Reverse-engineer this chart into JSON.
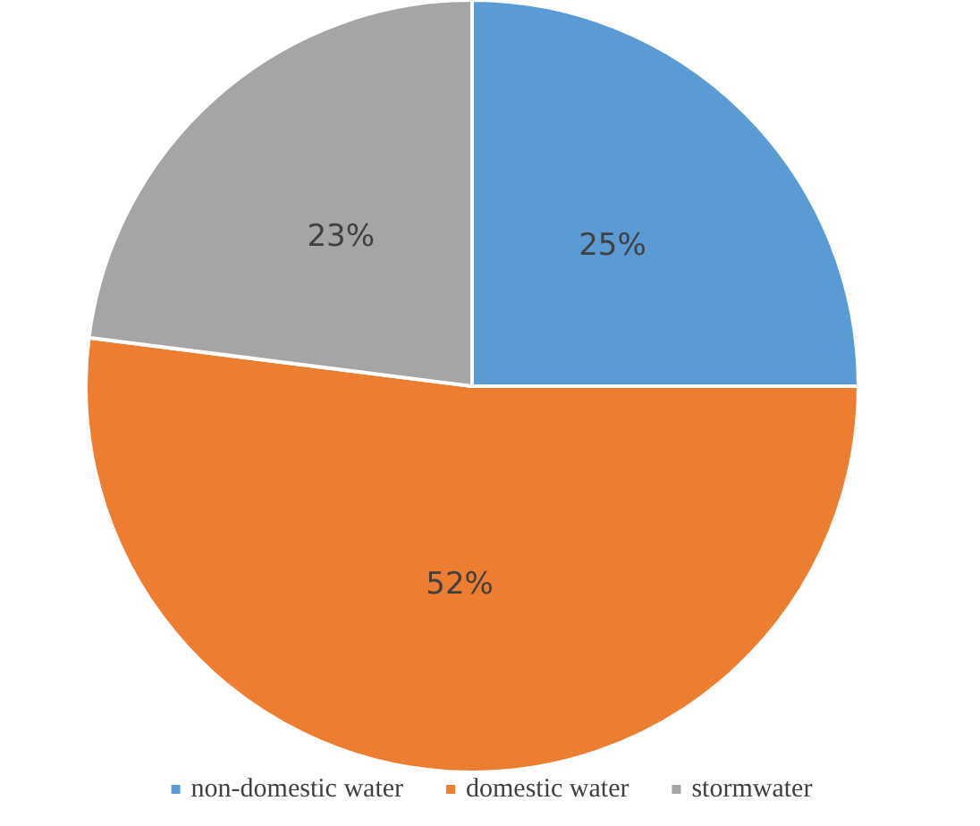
{
  "chart_data": {
    "type": "pie",
    "categories": [
      "non-domestic water",
      "domestic water",
      "stormwater"
    ],
    "values": [
      25,
      52,
      23
    ],
    "colors": [
      "#5b9bd5",
      "#ed7d31",
      "#a5a5a5"
    ],
    "value_labels": [
      "25%",
      "52%",
      "23%"
    ],
    "legend": "bottom"
  }
}
